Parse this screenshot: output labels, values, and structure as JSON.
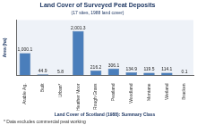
{
  "chart_data": {
    "type": "bar",
    "title": "Land Cover of Surveyed Peat Deposits",
    "subtitle": "(17 sites, 1988 land cover)",
    "x_label": "Land Cover of Scotland (1988): Summary Class",
    "y_label": "Area (ha)",
    "annotations": [
      "* Data excludes commercial peat working"
    ],
    "categories": [
      "Arable Ag.",
      "Built",
      "Urban*",
      "Heather Moor",
      "Rough Grass",
      "Peatland",
      "Woodland",
      "Montane",
      "Wetland",
      "Bracken"
    ],
    "values": [
      1000.1,
      44.9,
      5.8,
      2001.3,
      216.2,
      306.1,
      134.9,
      119.5,
      114.1,
      0.1
    ],
    "value_labels": [
      "1,000.1",
      "44.9",
      "5.8",
      "2,001.3",
      "216.2",
      "306.1",
      "134.9",
      "119.5",
      "114.1",
      "0.1"
    ],
    "color": "#4a7ebb",
    "ylim": [
      0,
      2500
    ],
    "data_labels": true,
    "tick_labels": "x",
    "grid": false
  }
}
